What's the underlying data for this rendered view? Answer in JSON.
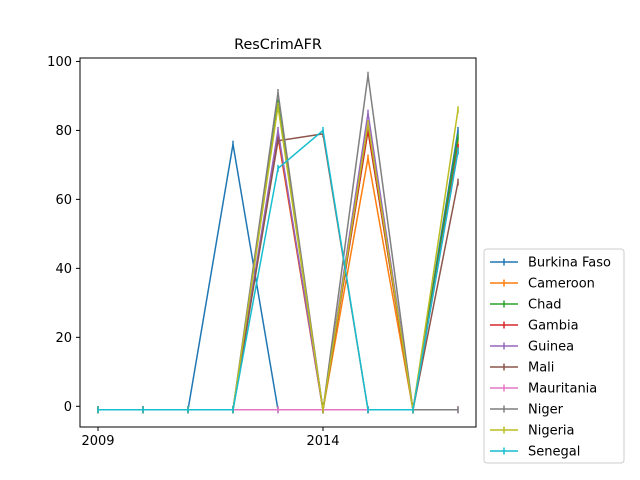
{
  "chart_data": {
    "type": "line",
    "title": "ResCrimAFR",
    "xlabel": "",
    "ylabel": "",
    "xlim": [
      2008.6,
      2017.4
    ],
    "ylim": [
      -6,
      101
    ],
    "x_ticks": [
      {
        "value": 2009,
        "label": "2009"
      },
      {
        "value": 2014,
        "label": "2014"
      }
    ],
    "y_ticks": [
      {
        "value": 0,
        "label": "0"
      },
      {
        "value": 20,
        "label": "20"
      },
      {
        "value": 40,
        "label": "40"
      },
      {
        "value": 60,
        "label": "60"
      },
      {
        "value": 80,
        "label": "80"
      },
      {
        "value": 100,
        "label": "100"
      }
    ],
    "legend_position": "lower-right-outside",
    "x": [
      2009,
      2010,
      2011,
      2012,
      2013,
      2014,
      2015,
      2016,
      2017
    ],
    "series": [
      {
        "name": "Burkina Faso",
        "color": "#1f77b4",
        "values": [
          -1,
          -1,
          -1,
          76,
          -1,
          -1,
          -1,
          -1,
          80
        ]
      },
      {
        "name": "Cameroon",
        "color": "#ff7f0e",
        "values": [
          -1,
          -1,
          -1,
          -1,
          78,
          -1,
          72,
          -1,
          76
        ]
      },
      {
        "name": "Chad",
        "color": "#2ca02c",
        "values": [
          -1,
          -1,
          -1,
          -1,
          88,
          -1,
          80,
          -1,
          78
        ]
      },
      {
        "name": "Gambia",
        "color": "#d62728",
        "values": [
          -1,
          -1,
          -1,
          -1,
          79,
          -1,
          80,
          -1,
          75
        ]
      },
      {
        "name": "Guinea",
        "color": "#9467bd",
        "values": [
          -1,
          -1,
          -1,
          -1,
          80,
          -1,
          85,
          -1,
          74
        ]
      },
      {
        "name": "Mali",
        "color": "#8c564b",
        "values": [
          -1,
          -1,
          -1,
          -1,
          77,
          79,
          -1,
          -1,
          65
        ]
      },
      {
        "name": "Mauritania",
        "color": "#e377c2",
        "values": [
          -1,
          -1,
          -1,
          -1,
          -1,
          -1,
          -1,
          -1,
          -1
        ]
      },
      {
        "name": "Niger",
        "color": "#7f7f7f",
        "values": [
          -1,
          -1,
          -1,
          -1,
          91,
          -1,
          96,
          -1,
          -1
        ]
      },
      {
        "name": "Nigeria",
        "color": "#bcbd22",
        "values": [
          -1,
          -1,
          -1,
          -1,
          87,
          -1,
          82,
          -1,
          86
        ]
      },
      {
        "name": "Senegal",
        "color": "#17becf",
        "values": [
          -1,
          -1,
          -1,
          -1,
          69,
          80,
          -1,
          -1,
          74
        ]
      }
    ]
  }
}
